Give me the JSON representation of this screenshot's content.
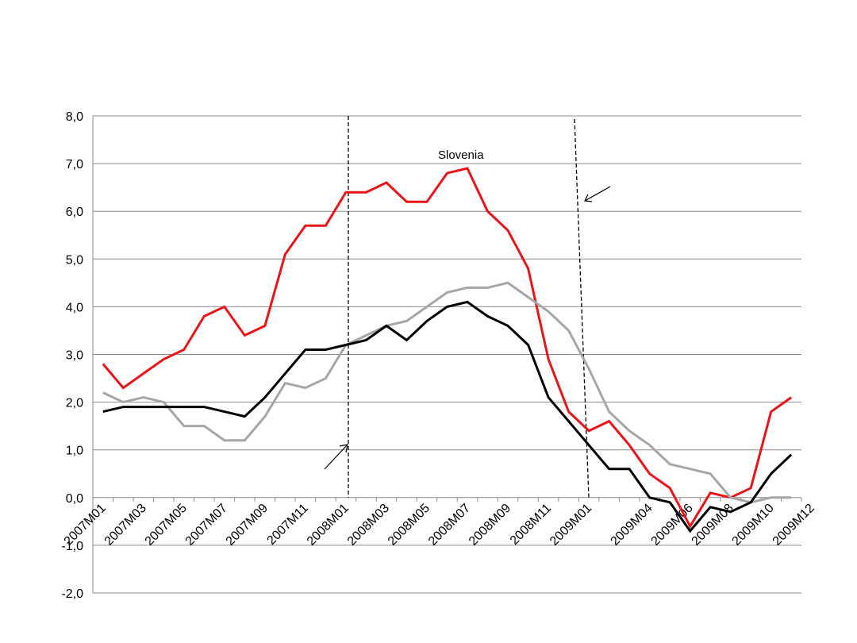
{
  "chart_data": {
    "type": "line",
    "title": "",
    "xlabel": "",
    "ylabel": "",
    "ylim": [
      -2.0,
      8.0
    ],
    "y_ticks": [
      "-2,0",
      "-1,0",
      "0,0",
      "1,0",
      "2,0",
      "3,0",
      "4,0",
      "5,0",
      "6,0",
      "7,0",
      "8,0"
    ],
    "grid": "horizontal",
    "x_tick_labels": [
      "2007M01",
      "2007M03",
      "2007M05",
      "2007M07",
      "2007M09",
      "2007M11",
      "2008M01",
      "2008M03",
      "2008M05",
      "2008M07",
      "2008M09",
      "2008M11",
      "2009M01",
      "2009M04",
      "2009M06",
      "2009M08",
      "2009M10",
      "2009M12"
    ],
    "annotation": "Slovenia",
    "series": [
      {
        "color": "#e8141a",
        "values": [
          2.8,
          2.3,
          2.6,
          2.9,
          3.1,
          3.8,
          4.0,
          3.4,
          3.6,
          5.1,
          5.7,
          5.7,
          6.4,
          6.4,
          6.6,
          6.2,
          6.2,
          6.8,
          6.9,
          6.0,
          5.6,
          4.8,
          2.9,
          1.8,
          1.4,
          1.6,
          1.1,
          0.5,
          0.2,
          -0.6,
          0.1,
          0.0,
          0.2,
          1.8,
          2.1
        ]
      },
      {
        "color": "#a6a6a6",
        "values": [
          2.2,
          2.0,
          2.1,
          2.0,
          1.5,
          1.5,
          1.2,
          1.2,
          1.7,
          2.4,
          2.3,
          2.5,
          3.2,
          3.4,
          3.6,
          3.7,
          4.0,
          4.3,
          4.4,
          4.4,
          4.5,
          4.2,
          3.9,
          3.5,
          2.7,
          1.8,
          1.4,
          1.1,
          0.7,
          0.6,
          0.5,
          0.0,
          -0.1,
          0.0,
          0.0
        ]
      },
      {
        "color": "#000000",
        "values": [
          1.8,
          1.9,
          1.9,
          1.9,
          1.9,
          1.9,
          1.8,
          1.7,
          2.1,
          2.6,
          3.1,
          3.1,
          3.2,
          3.3,
          3.6,
          3.3,
          3.7,
          4.0,
          4.1,
          3.8,
          3.6,
          3.2,
          2.1,
          1.6,
          1.1,
          0.6,
          0.6,
          0.0,
          -0.1,
          -0.7,
          -0.2,
          -0.3,
          -0.1,
          0.5,
          0.9
        ]
      }
    ]
  }
}
